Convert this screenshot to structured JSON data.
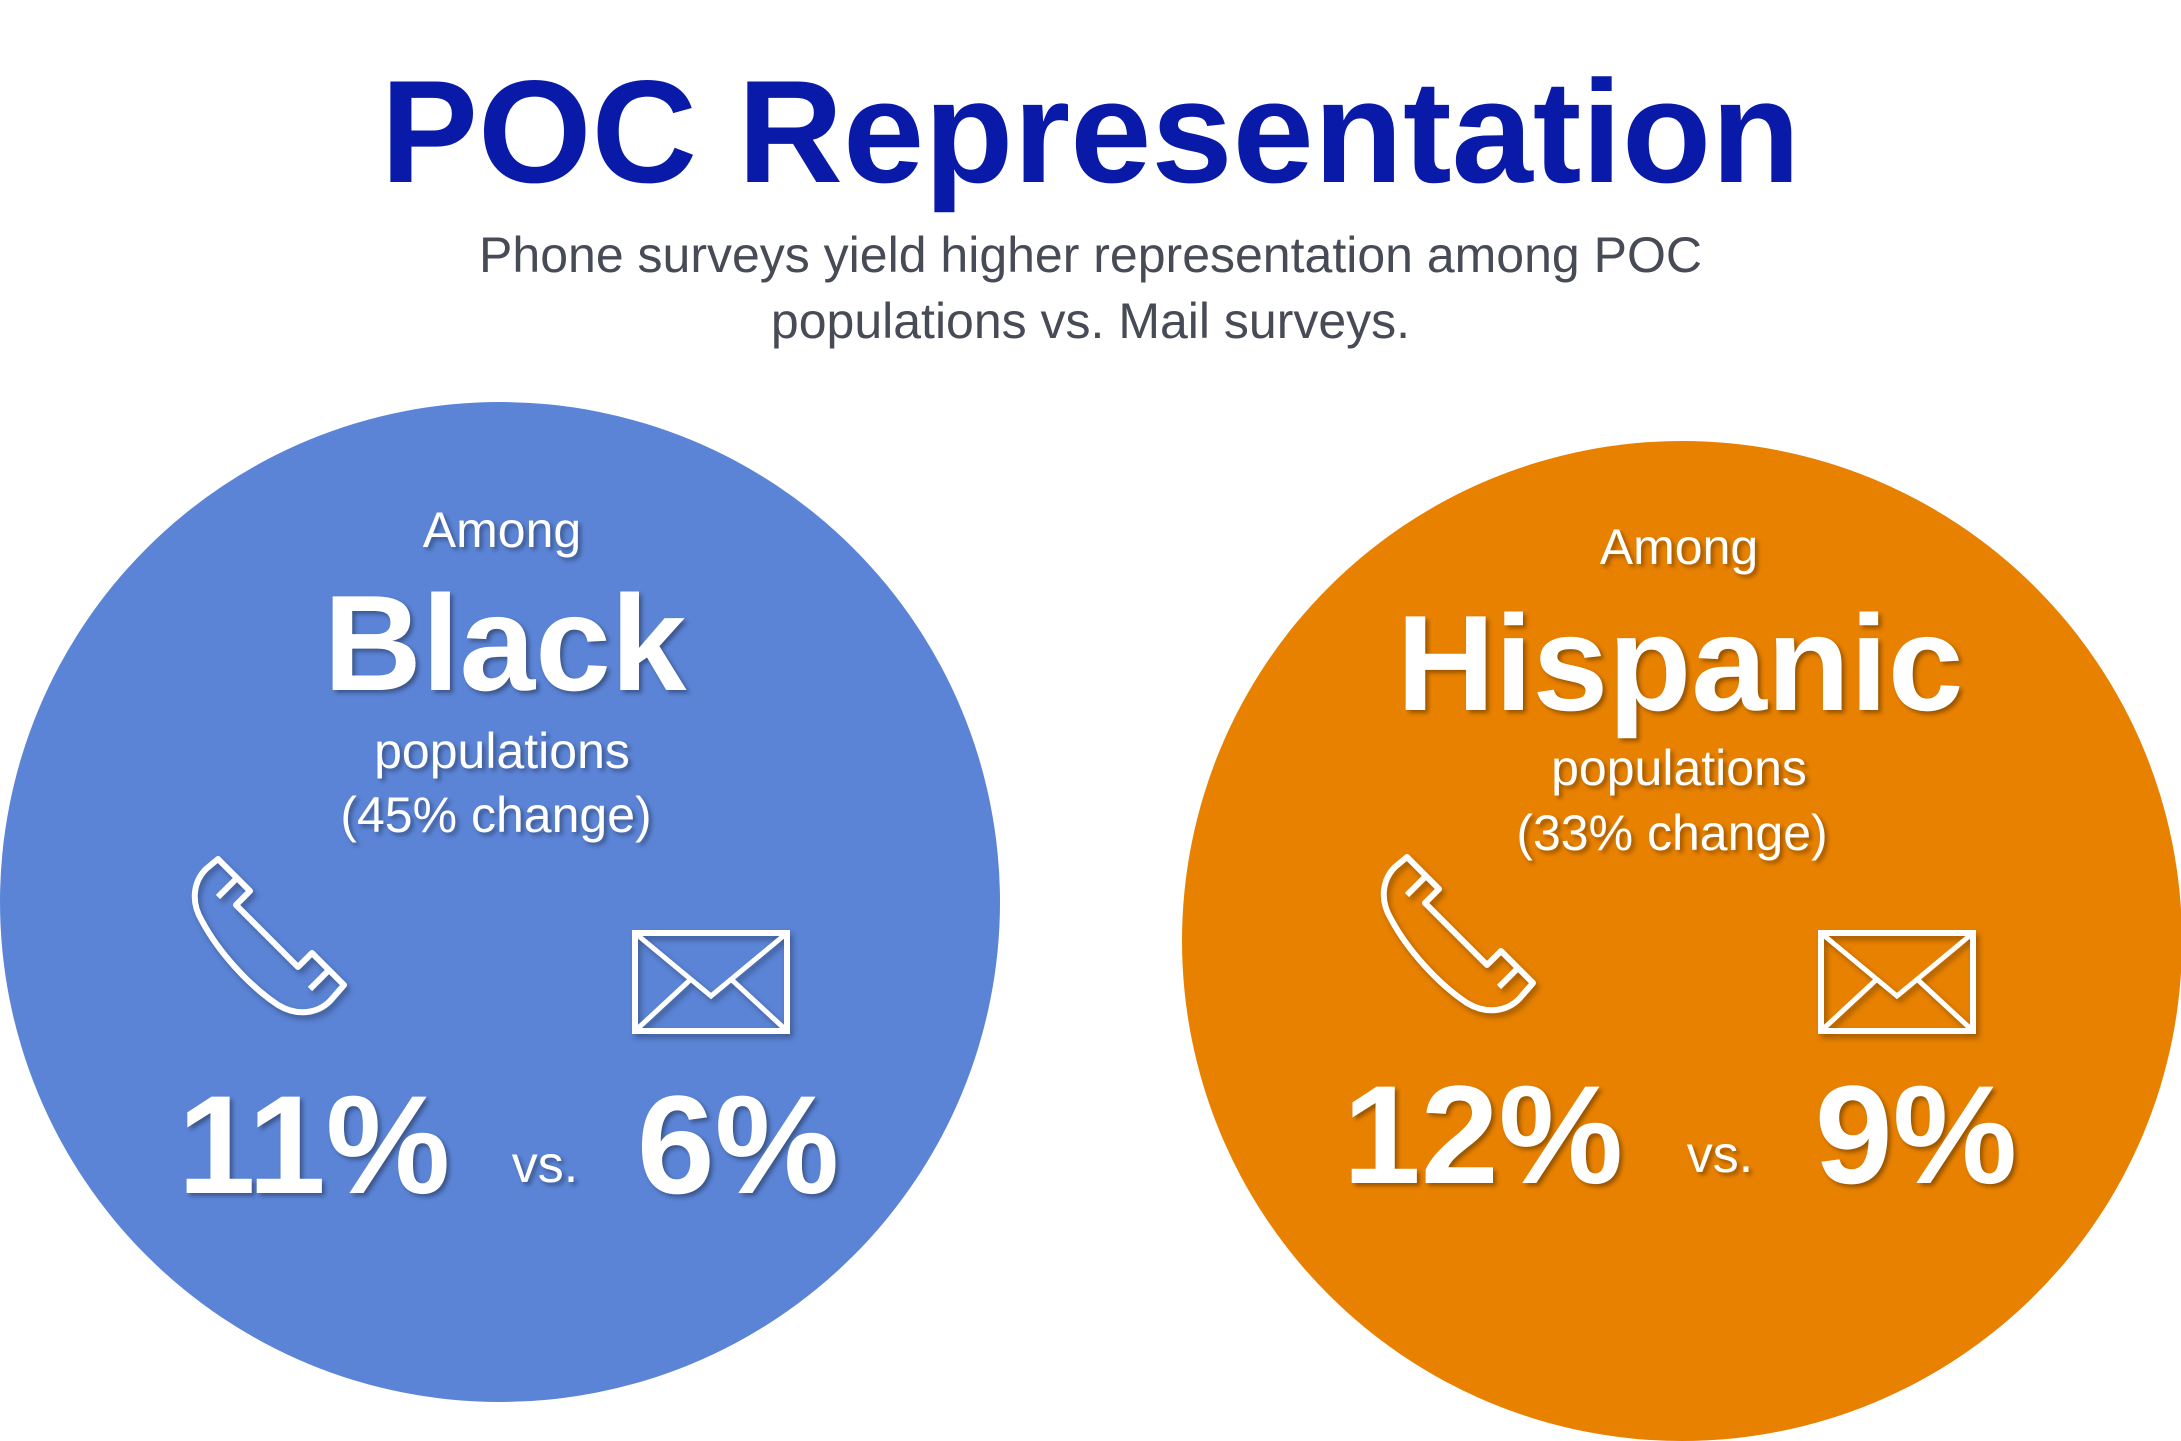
{
  "header": {
    "title": "POC Representation",
    "subtitle_line1": "Phone surveys yield higher representation among POC",
    "subtitle_line2": "populations vs. Mail surveys."
  },
  "colors": {
    "title": "#0A1AA8",
    "subtitle": "#474b55",
    "black_circle": "#5B84D6",
    "hispanic_circle": "#E88100"
  },
  "groups": [
    {
      "among": "Among",
      "name": "Black",
      "populations": "populations",
      "change": "(45% change)",
      "phone_icon": "phone-icon",
      "mail_icon": "envelope-icon",
      "phone_value": "11%",
      "vs": "vs.",
      "mail_value": "6%"
    },
    {
      "among": "Among",
      "name": "Hispanic",
      "populations": "populations",
      "change": "(33% change)",
      "phone_icon": "phone-icon",
      "mail_icon": "envelope-icon",
      "phone_value": "12%",
      "vs": "vs.",
      "mail_value": "9%"
    }
  ]
}
